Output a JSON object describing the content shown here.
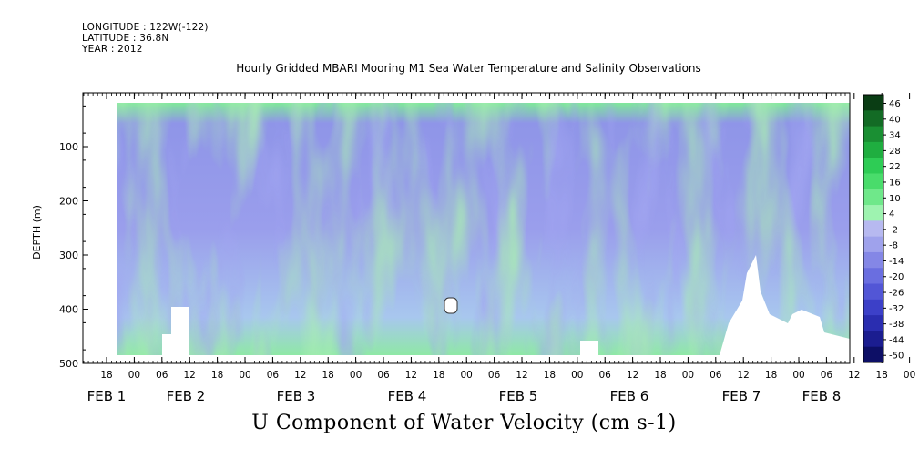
{
  "header": {
    "longitude": "LONGITUDE : 122W(-122)",
    "latitude": "LATITUDE : 36.8N",
    "year": "YEAR : 2012"
  },
  "chart_data": {
    "type": "heatmap",
    "title": "Hourly Gridded MBARI Mooring M1 Sea Water Temperature and Salinity Observations",
    "bottom_title": "U Component of Water Velocity (cm s-1)",
    "ylabel": "DEPTH (m)",
    "ylim": [
      500,
      0
    ],
    "y_ticks": [
      100,
      200,
      300,
      400,
      500
    ],
    "x_hour_ticks": [
      "18",
      "00",
      "06",
      "12",
      "18",
      "00",
      "06",
      "12",
      "18",
      "00",
      "06",
      "12",
      "18",
      "00",
      "06",
      "12",
      "18",
      "00",
      "06",
      "12",
      "18",
      "00",
      "06",
      "12",
      "18",
      "00",
      "06",
      "12",
      "18",
      "00",
      "06"
    ],
    "x_date_labels": [
      "FEB  1",
      "FEB  2",
      "FEB  3",
      "FEB  4",
      "FEB  5",
      "FEB  6",
      "FEB  7",
      "FEB  8"
    ],
    "colorbar": {
      "range": [
        -50,
        50
      ],
      "labels": [
        "46",
        "40",
        "34",
        "28",
        "22",
        "16",
        "10",
        "4",
        "-2",
        "-8",
        "-14",
        "-20",
        "-26",
        "-32",
        "-38",
        "-44",
        "-50"
      ],
      "colors": [
        "#0a3d14",
        "#136b25",
        "#1a8f33",
        "#1fae40",
        "#2ecc55",
        "#49dc6b",
        "#6fe88a",
        "#9ef3b0",
        "#b7b9f0",
        "#9fa2ec",
        "#8487e6",
        "#6a6ee0",
        "#5256d6",
        "#3c40c8",
        "#2a2db0",
        "#1b1d90",
        "#0d0f66"
      ]
    },
    "blank_regions": [
      {
        "label": "missing-feb2-0900",
        "x": [
          150,
          180
        ],
        "depth": [
          400,
          500
        ]
      },
      {
        "label": "missing-feb4-1900",
        "x": [
          240,
          260
        ],
        "depth": [
          385,
          405
        ]
      },
      {
        "label": "missing-feb6-0200",
        "x": [
          340,
          350
        ],
        "depth": [
          460,
          500
        ]
      },
      {
        "label": "missing-feb7-1000",
        "x": [
          450,
          560
        ],
        "depth": [
          260,
          500
        ]
      }
    ]
  }
}
